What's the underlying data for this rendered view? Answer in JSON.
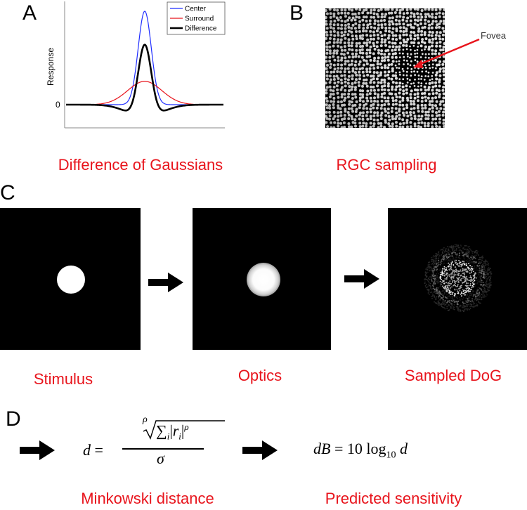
{
  "panels": {
    "a": {
      "letter": "A",
      "ylabel": "Response",
      "zero_tick": "0",
      "legend": [
        "Center",
        "Surround",
        "Difference"
      ],
      "colors": {
        "center": "#1f2dff",
        "surround": "#e8141c",
        "difference": "#000000"
      },
      "caption": "Difference of Gaussians"
    },
    "b": {
      "letter": "B",
      "label": "Fovea",
      "caption": "RGC sampling"
    },
    "c": {
      "letter": "C",
      "captions": [
        "Stimulus",
        "Optics",
        "Sampled DoG"
      ]
    },
    "d": {
      "letter": "D",
      "caption_left": "Minkowski distance",
      "caption_right": "Predicted sensitivity",
      "eq1_lhs": "d =",
      "eq1_root_index": "ρ",
      "eq1_num": "∑",
      "eq1_den": "σ",
      "eq2": "dB = 10 log",
      "eq2_sub": "10",
      "eq2_end": "d"
    }
  },
  "chart_data": {
    "type": "line",
    "title": "",
    "xlabel": "",
    "ylabel": "Response",
    "series": [
      {
        "name": "Center",
        "color": "#1f2dff",
        "amplitude": 1.0,
        "sigma": 0.5
      },
      {
        "name": "Surround",
        "color": "#e8141c",
        "amplitude": 0.25,
        "sigma": 1.3
      },
      {
        "name": "Difference",
        "color": "#000000"
      }
    ],
    "xlim": [
      -6,
      6
    ],
    "ylim": [
      -0.25,
      1.0
    ]
  }
}
